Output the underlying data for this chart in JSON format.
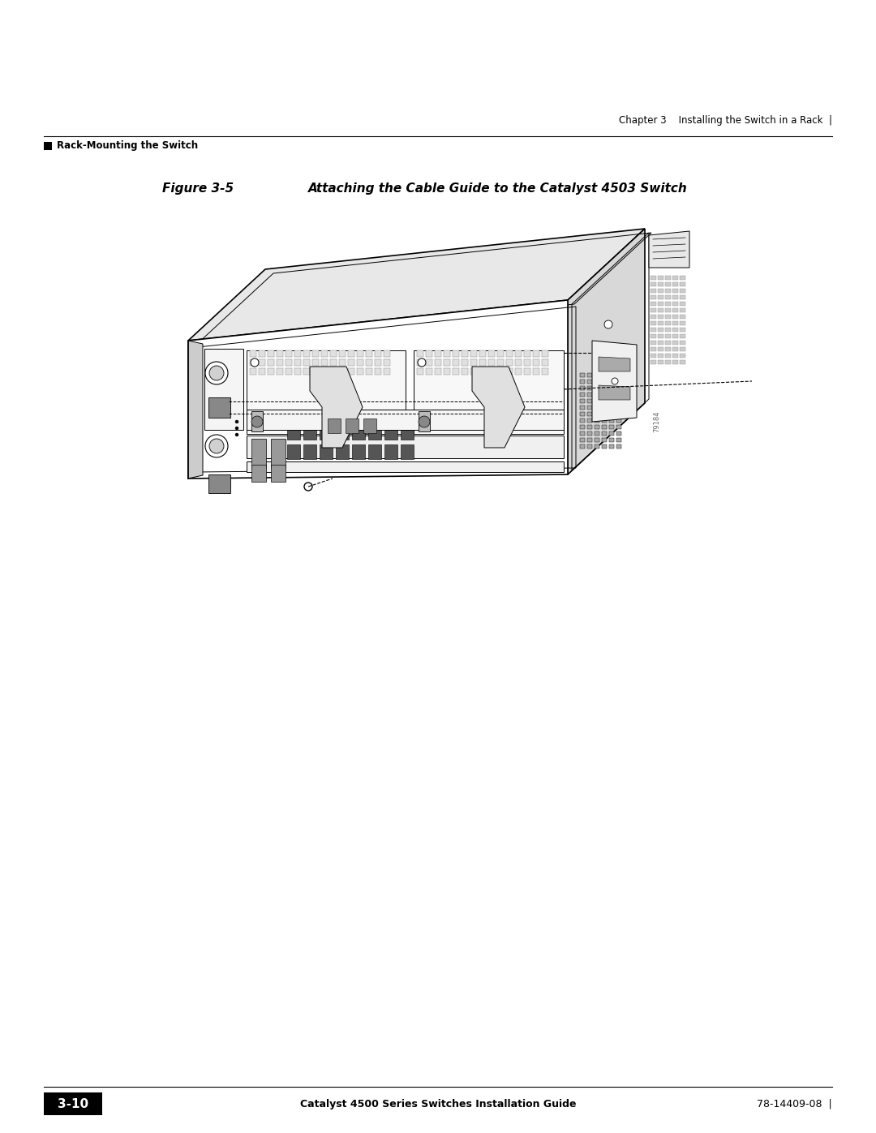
{
  "bg_color": "#ffffff",
  "page_width": 10.8,
  "page_height": 13.97,
  "header_right_text": "Chapter 3    Installing the Switch in a Rack  |",
  "header_left_text": "■   Rack-Mounting the Switch",
  "figure_title": "Figure 3-5        Attaching the Cable Guide to the Catalyst 4503 Switch",
  "footer_left_box_text": "3-10",
  "footer_center_text": "Catalyst 4500 Series Switches Installation Guide",
  "footer_right_text": "78-14409-08  |",
  "header_fontsize": 8.5,
  "footer_fontsize": 9,
  "figure_title_fontsize": 11,
  "watermark_text": "79184"
}
